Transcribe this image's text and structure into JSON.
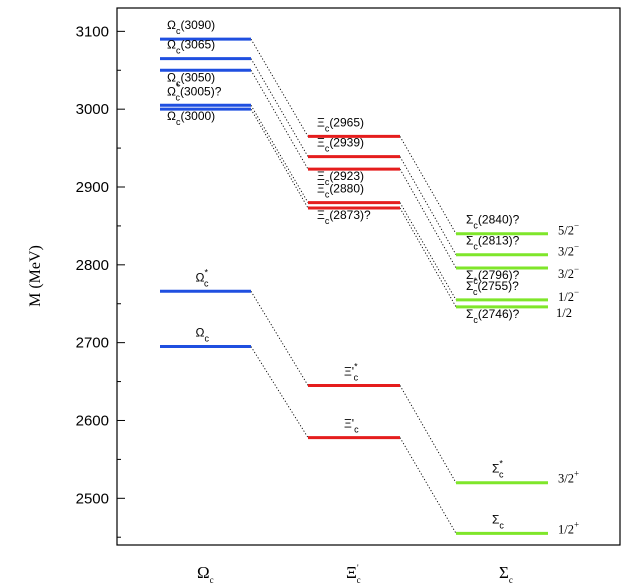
{
  "chart_data": {
    "type": "level-diagram",
    "ylabel": "M (MeV)",
    "ylim": [
      2440,
      3130
    ],
    "yticks": [
      2500,
      2600,
      2700,
      2800,
      2900,
      3000,
      3100
    ],
    "groups": [
      {
        "key": "omega",
        "base": "Ω",
        "sub": "c",
        "sup": "",
        "color": "#1f4fe0"
      },
      {
        "key": "xi",
        "base": "Ξ",
        "sub": "c",
        "sup": "'",
        "color": "#e51d1d"
      },
      {
        "key": "sigma",
        "base": "Σ",
        "sub": "c",
        "sup": "",
        "color": "#7fe62a"
      }
    ],
    "levels": [
      {
        "id": "om3090",
        "group": "omega",
        "mass": 3090,
        "base": "Ω",
        "sub": "c",
        "sup": "",
        "suffix": "(3090)",
        "label_pos": "above"
      },
      {
        "id": "om3065",
        "group": "omega",
        "mass": 3065,
        "base": "Ω",
        "sub": "c",
        "sup": "",
        "suffix": "(3065)",
        "label_pos": "above"
      },
      {
        "id": "om3050",
        "group": "omega",
        "mass": 3050,
        "base": "Ω",
        "sub": "c",
        "sup": "",
        "suffix": "(3050)",
        "label_pos": "below"
      },
      {
        "id": "om3005",
        "group": "omega",
        "mass": 3005,
        "base": "Ω",
        "sub": "c",
        "sup": "*",
        "suffix": "(3005)?",
        "label_pos": "above"
      },
      {
        "id": "om3000",
        "group": "omega",
        "mass": 3000,
        "base": "Ω",
        "sub": "c",
        "sup": "",
        "suffix": "(3000)",
        "label_pos": "below"
      },
      {
        "id": "omstar",
        "group": "omega",
        "mass": 2766,
        "base": "Ω",
        "sub": "c",
        "sup": "*",
        "suffix": "",
        "label_pos": "above"
      },
      {
        "id": "omc",
        "group": "omega",
        "mass": 2695,
        "base": "Ω",
        "sub": "c",
        "sup": "",
        "suffix": "",
        "label_pos": "above"
      },
      {
        "id": "xi2965",
        "group": "xi",
        "mass": 2965,
        "base": "Ξ",
        "sub": "c",
        "sup": "",
        "suffix": "(2965)",
        "label_pos": "above"
      },
      {
        "id": "xi2939",
        "group": "xi",
        "mass": 2939,
        "base": "Ξ",
        "sub": "c",
        "sup": "",
        "suffix": "(2939)",
        "label_pos": "above"
      },
      {
        "id": "xi2923",
        "group": "xi",
        "mass": 2923,
        "base": "Ξ",
        "sub": "c",
        "sup": "",
        "suffix": "(2923)",
        "label_pos": "below"
      },
      {
        "id": "xi2880",
        "group": "xi",
        "mass": 2880,
        "base": "Ξ",
        "sub": "c",
        "sup": "",
        "suffix": "(2880)",
        "label_pos": "above"
      },
      {
        "id": "xi2873",
        "group": "xi",
        "mass": 2873,
        "base": "Ξ",
        "sub": "c",
        "sup": "",
        "suffix": "(2873)?",
        "label_pos": "below"
      },
      {
        "id": "xistar",
        "group": "xi",
        "mass": 2645,
        "base": "Ξ'",
        "sub": "c",
        "sup": "*",
        "suffix": "",
        "label_pos": "above"
      },
      {
        "id": "xiprime",
        "group": "xi",
        "mass": 2578,
        "base": "Ξ'",
        "sub": "c",
        "sup": "",
        "suffix": "",
        "label_pos": "above"
      },
      {
        "id": "sg2840",
        "group": "sigma",
        "mass": 2840,
        "base": "Σ",
        "sub": "c",
        "sup": "",
        "suffix": "(2840)?",
        "label_pos": "above",
        "jp": "5/2",
        "parity": "−"
      },
      {
        "id": "sg2813",
        "group": "sigma",
        "mass": 2813,
        "base": "Σ",
        "sub": "c",
        "sup": "",
        "suffix": "(2813)?",
        "label_pos": "above",
        "jp": "3/2",
        "parity": "−"
      },
      {
        "id": "sg2796",
        "group": "sigma",
        "mass": 2796,
        "base": "Σ",
        "sub": "c",
        "sup": "",
        "suffix": "(2796)?",
        "label_pos": "below",
        "jp": "3/2",
        "parity": "−"
      },
      {
        "id": "sg2755",
        "group": "sigma",
        "mass": 2755,
        "base": "Σ",
        "sub": "c",
        "sup": "*",
        "suffix": "(2755)?",
        "label_pos": "above",
        "jp": "1/2",
        "parity": "−"
      },
      {
        "id": "sg2746",
        "group": "sigma",
        "mass": 2746,
        "base": "Σ",
        "sub": "c",
        "sup": "",
        "suffix": "(2746)?",
        "label_pos": "below",
        "jp": "1/2",
        "parity": ""
      },
      {
        "id": "sgstar",
        "group": "sigma",
        "mass": 2520,
        "base": "Σ",
        "sub": "c",
        "sup": "*",
        "suffix": "",
        "label_pos": "above",
        "jp": "3/2",
        "parity": "+"
      },
      {
        "id": "sgc",
        "group": "sigma",
        "mass": 2455,
        "base": "Σ",
        "sub": "c",
        "sup": "",
        "suffix": "",
        "label_pos": "above",
        "jp": "1/2",
        "parity": "+"
      }
    ],
    "connections": [
      [
        "om3090",
        "xi2965"
      ],
      [
        "om3065",
        "xi2939"
      ],
      [
        "om3050",
        "xi2923"
      ],
      [
        "om3005",
        "xi2880"
      ],
      [
        "om3000",
        "xi2873"
      ],
      [
        "xi2965",
        "sg2840"
      ],
      [
        "xi2939",
        "sg2813"
      ],
      [
        "xi2923",
        "sg2796"
      ],
      [
        "xi2880",
        "sg2755"
      ],
      [
        "xi2873",
        "sg2746"
      ],
      [
        "omstar",
        "xistar"
      ],
      [
        "xistar",
        "sgstar"
      ],
      [
        "omc",
        "xiprime"
      ],
      [
        "xiprime",
        "sgc"
      ]
    ]
  }
}
